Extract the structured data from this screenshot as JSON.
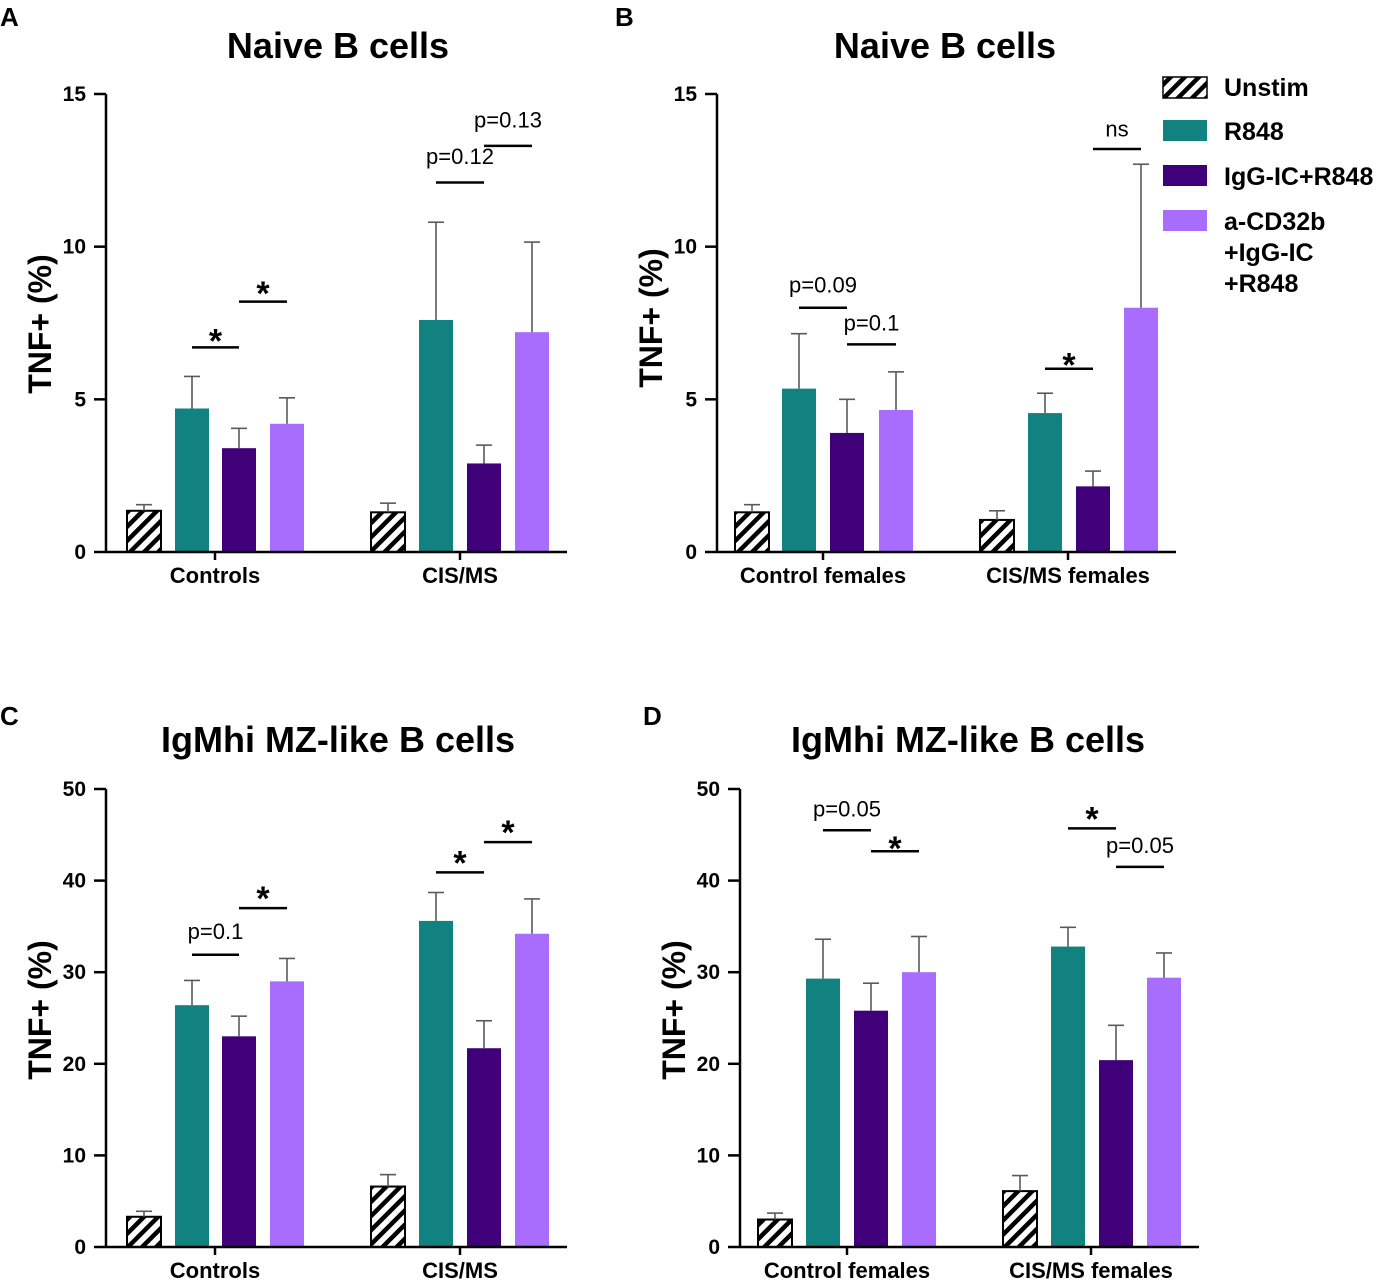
{
  "figure": {
    "legend": {
      "entries": [
        {
          "key": "unstim",
          "lines": [
            "Unstim"
          ]
        },
        {
          "key": "r848",
          "lines": [
            "R848"
          ]
        },
        {
          "key": "igg",
          "lines": [
            "IgG-IC+R848"
          ]
        },
        {
          "key": "acd",
          "lines": [
            "a-CD32b",
            "+IgG-IC",
            "+R848"
          ]
        }
      ]
    },
    "colors": {
      "unstim_fill": "#ffffff",
      "unstim_hatch": "#000000",
      "r848": "#128280",
      "igg": "#3f007a",
      "acd": "#a86dfc",
      "axis": "#000000"
    }
  },
  "chart_data": [
    {
      "panel": "A",
      "type": "bar",
      "title": "Naive B cells",
      "ylabel": "TNF+ (%)",
      "xlabel": "",
      "ylim": [
        0,
        15
      ],
      "yticks": [
        0,
        5,
        10,
        15
      ],
      "yticklabels": [
        "0",
        "5",
        "10",
        "15"
      ],
      "categories": [
        "Controls",
        "CIS/MS"
      ],
      "series": [
        {
          "key": "unstim",
          "name": "Unstim",
          "values": [
            1.35,
            1.3
          ],
          "errors": [
            0.2,
            0.3
          ]
        },
        {
          "key": "r848",
          "name": "R848",
          "values": [
            4.7,
            7.6
          ],
          "errors": [
            1.05,
            3.2
          ]
        },
        {
          "key": "igg",
          "name": "IgG-IC+R848",
          "values": [
            3.4,
            2.9
          ],
          "errors": [
            0.65,
            0.6
          ]
        },
        {
          "key": "acd",
          "name": "a-CD32b +IgG-IC +R848",
          "values": [
            4.2,
            7.2
          ],
          "errors": [
            0.85,
            2.95
          ]
        }
      ],
      "annotations": [
        {
          "label": "*",
          "cat": 0,
          "from": 1,
          "to": 2,
          "y": 7.0,
          "lineY": 6.7
        },
        {
          "label": "*",
          "cat": 0,
          "from": 2,
          "to": 3,
          "y": 8.55,
          "lineY": 8.2
        },
        {
          "label": "p=0.12",
          "cat": 1,
          "from": 1,
          "to": 2,
          "y": 12.7,
          "lineY": 12.1
        },
        {
          "label": "p=0.13",
          "cat": 1,
          "from": 2,
          "to": 3,
          "y": 13.9,
          "lineY": 13.3
        }
      ]
    },
    {
      "panel": "B",
      "type": "bar",
      "title": "Naive B cells",
      "ylabel": "TNF+ (%)",
      "xlabel": "",
      "ylim": [
        0,
        15
      ],
      "yticks": [
        0,
        5,
        10,
        15
      ],
      "yticklabels": [
        "0",
        "5",
        "10",
        "15"
      ],
      "categories": [
        "Control females",
        "CIS/MS females"
      ],
      "series": [
        {
          "key": "unstim",
          "name": "Unstim",
          "values": [
            1.3,
            1.05
          ],
          "errors": [
            0.25,
            0.3
          ]
        },
        {
          "key": "r848",
          "name": "R848",
          "values": [
            5.35,
            4.55
          ],
          "errors": [
            1.8,
            0.65
          ]
        },
        {
          "key": "igg",
          "name": "IgG-IC+R848",
          "values": [
            3.9,
            2.15
          ],
          "errors": [
            1.1,
            0.5
          ]
        },
        {
          "key": "acd",
          "name": "a-CD32b +IgG-IC +R848",
          "values": [
            4.65,
            8.0
          ],
          "errors": [
            1.25,
            4.7
          ]
        }
      ],
      "annotations": [
        {
          "label": "p=0.09",
          "cat": 0,
          "from": 1,
          "to": 2,
          "y": 8.5,
          "lineY": 8.0
        },
        {
          "label": "p=0.1",
          "cat": 0,
          "from": 2,
          "to": 3,
          "y": 7.25,
          "lineY": 6.8
        },
        {
          "label": "*",
          "cat": 1,
          "from": 1,
          "to": 2,
          "y": 6.2,
          "lineY": 6.0
        },
        {
          "label": "ns",
          "cat": 1,
          "from": 2,
          "to": 3,
          "y": 13.6,
          "lineY": 13.2
        }
      ]
    },
    {
      "panel": "C",
      "type": "bar",
      "title": "IgMhi MZ-like B cells",
      "ylabel": "TNF+ (%)",
      "xlabel": "",
      "ylim": [
        0,
        50
      ],
      "yticks": [
        0,
        10,
        20,
        30,
        40,
        50
      ],
      "yticklabels": [
        "0",
        "10",
        "20",
        "30",
        "40",
        "50"
      ],
      "categories": [
        "Controls",
        "CIS/MS"
      ],
      "series": [
        {
          "key": "unstim",
          "name": "Unstim",
          "values": [
            3.3,
            6.6
          ],
          "errors": [
            0.6,
            1.3
          ]
        },
        {
          "key": "r848",
          "name": "R848",
          "values": [
            26.4,
            35.6
          ],
          "errors": [
            2.7,
            3.1
          ]
        },
        {
          "key": "igg",
          "name": "IgG-IC+R848",
          "values": [
            23.0,
            21.7
          ],
          "errors": [
            2.2,
            3.0
          ]
        },
        {
          "key": "acd",
          "name": "a-CD32b +IgG-IC +R848",
          "values": [
            29.0,
            34.2
          ],
          "errors": [
            2.5,
            3.8
          ]
        }
      ],
      "annotations": [
        {
          "label": "p=0.1",
          "cat": 0,
          "from": 1,
          "to": 2,
          "y": 33.6,
          "lineY": 31.9
        },
        {
          "label": "*",
          "cat": 0,
          "from": 2,
          "to": 3,
          "y": 38.3,
          "lineY": 37.0
        },
        {
          "label": "*",
          "cat": 1,
          "from": 1,
          "to": 2,
          "y": 42.2,
          "lineY": 40.9
        },
        {
          "label": "*",
          "cat": 1,
          "from": 2,
          "to": 3,
          "y": 45.5,
          "lineY": 44.2
        }
      ]
    },
    {
      "panel": "D",
      "type": "bar",
      "title": "IgMhi MZ-like B cells",
      "ylabel": "TNF+ (%)",
      "xlabel": "",
      "ylim": [
        0,
        50
      ],
      "yticks": [
        0,
        10,
        20,
        30,
        40,
        50
      ],
      "yticklabels": [
        "0",
        "10",
        "20",
        "30",
        "40",
        "50"
      ],
      "categories": [
        "Control females",
        "CIS/MS females"
      ],
      "series": [
        {
          "key": "unstim",
          "name": "Unstim",
          "values": [
            3.0,
            6.1
          ],
          "errors": [
            0.7,
            1.7
          ]
        },
        {
          "key": "r848",
          "name": "R848",
          "values": [
            29.3,
            32.8
          ],
          "errors": [
            4.3,
            2.1
          ]
        },
        {
          "key": "igg",
          "name": "IgG-IC+R848",
          "values": [
            25.8,
            20.4
          ],
          "errors": [
            3.0,
            3.8
          ]
        },
        {
          "key": "acd",
          "name": "a-CD32b +IgG-IC +R848",
          "values": [
            30.0,
            29.4
          ],
          "errors": [
            3.9,
            2.7
          ]
        }
      ],
      "annotations": [
        {
          "label": "p=0.05",
          "cat": 0,
          "from": 1,
          "to": 2,
          "y": 47.0,
          "lineY": 45.5
        },
        {
          "label": "*",
          "cat": 0,
          "from": 2,
          "to": 3,
          "y": 43.8,
          "lineY": 43.2
        },
        {
          "label": "*",
          "cat": 1,
          "from": 1,
          "to": 2,
          "y": 47.0,
          "lineY": 45.7
        },
        {
          "label": "p=0.05",
          "cat": 1,
          "from": 2,
          "to": 3,
          "y": 43.0,
          "lineY": 41.5
        }
      ]
    }
  ]
}
